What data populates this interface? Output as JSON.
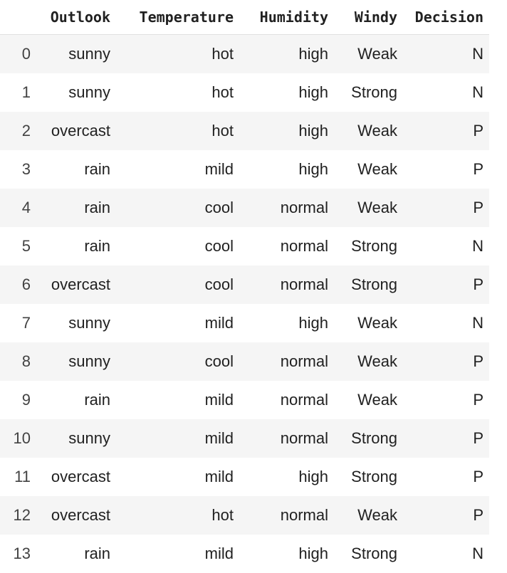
{
  "table": {
    "headers": [
      "",
      "Outlook",
      "Temperature",
      "Humidity",
      "Windy",
      "Decision"
    ],
    "rows": [
      [
        "0",
        "sunny",
        "hot",
        "high",
        "Weak",
        "N"
      ],
      [
        "1",
        "sunny",
        "hot",
        "high",
        "Strong",
        "N"
      ],
      [
        "2",
        "overcast",
        "hot",
        "high",
        "Weak",
        "P"
      ],
      [
        "3",
        "rain",
        "mild",
        "high",
        "Weak",
        "P"
      ],
      [
        "4",
        "rain",
        "cool",
        "normal",
        "Weak",
        "P"
      ],
      [
        "5",
        "rain",
        "cool",
        "normal",
        "Strong",
        "N"
      ],
      [
        "6",
        "overcast",
        "cool",
        "normal",
        "Strong",
        "P"
      ],
      [
        "7",
        "sunny",
        "mild",
        "high",
        "Weak",
        "N"
      ],
      [
        "8",
        "sunny",
        "cool",
        "normal",
        "Weak",
        "P"
      ],
      [
        "9",
        "rain",
        "mild",
        "normal",
        "Weak",
        "P"
      ],
      [
        "10",
        "sunny",
        "mild",
        "normal",
        "Strong",
        "P"
      ],
      [
        "11",
        "overcast",
        "mild",
        "high",
        "Strong",
        "P"
      ],
      [
        "12",
        "overcast",
        "hot",
        "normal",
        "Weak",
        "P"
      ],
      [
        "13",
        "rain",
        "mild",
        "high",
        "Strong",
        "N"
      ]
    ]
  },
  "colors": {
    "stripe": "#f5f5f5",
    "text": "#212121",
    "header_rule": "#e0e0e0"
  }
}
